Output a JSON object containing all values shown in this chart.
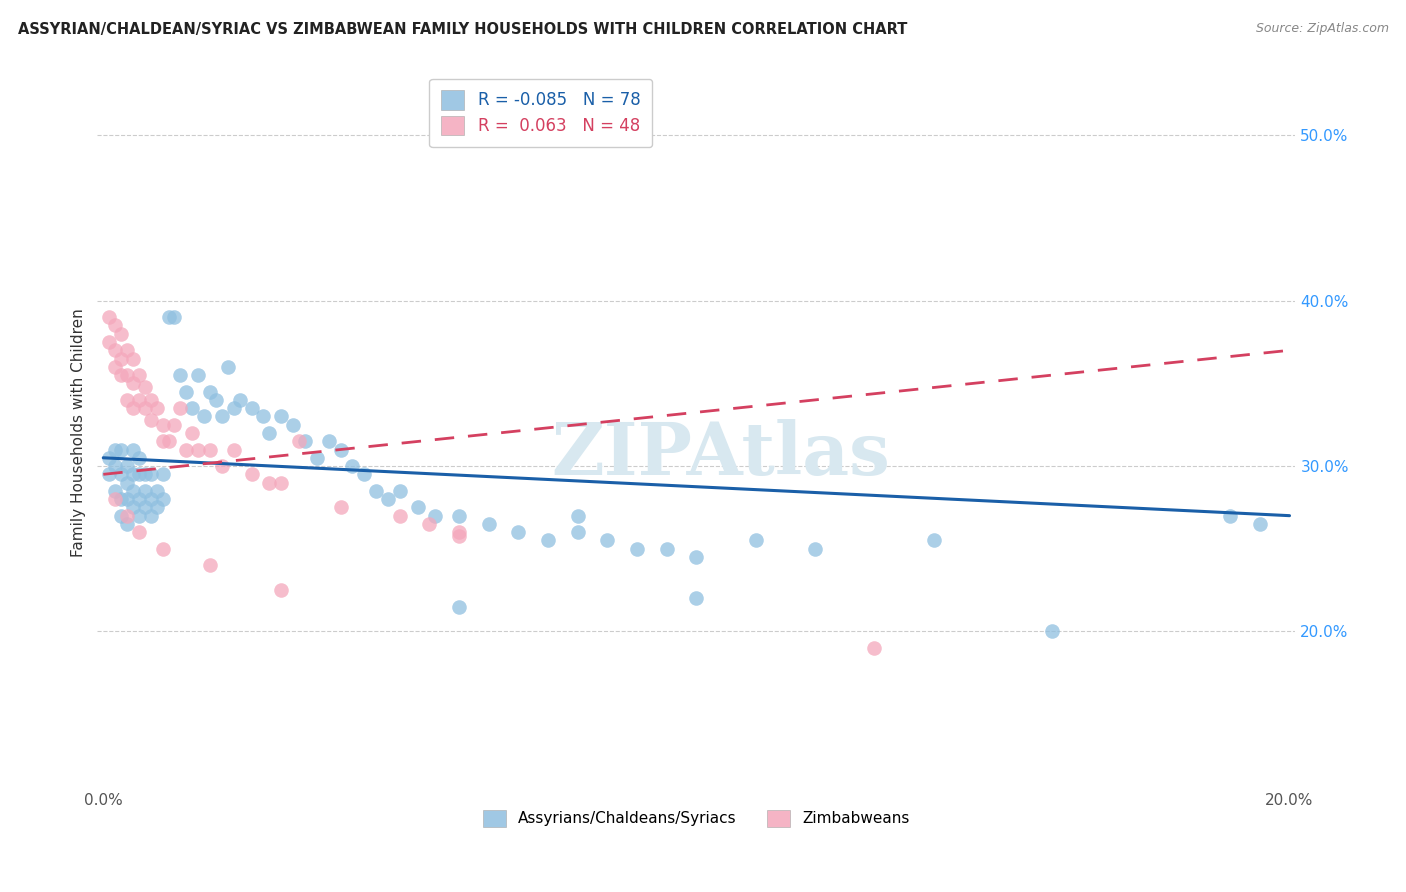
{
  "title": "ASSYRIAN/CHALDEAN/SYRIAC VS ZIMBABWEAN FAMILY HOUSEHOLDS WITH CHILDREN CORRELATION CHART",
  "source": "Source: ZipAtlas.com",
  "ylabel": "Family Households with Children",
  "xlim": [
    -0.001,
    0.201
  ],
  "ylim": [
    0.105,
    0.535
  ],
  "ytick_vals": [
    0.2,
    0.3,
    0.4,
    0.5
  ],
  "ytick_labels": [
    "20.0%",
    "30.0%",
    "40.0%",
    "50.0%"
  ],
  "xtick_vals": [
    0.0,
    0.2
  ],
  "xtick_labels": [
    "0.0%",
    "20.0%"
  ],
  "legend_r1": "R = -0.085   N = 78",
  "legend_r2": "R =  0.063   N = 48",
  "legend_bottom": [
    "Assyrians/Chaldeans/Syriacs",
    "Zimbabweans"
  ],
  "blue_scatter": "#8fbfe0",
  "pink_scatter": "#f4a7bb",
  "blue_line": "#1a5fa8",
  "pink_line": "#d44060",
  "bg": "#ffffff",
  "grid_color": "#cccccc",
  "assyrian_x": [
    0.001,
    0.001,
    0.002,
    0.002,
    0.002,
    0.003,
    0.003,
    0.003,
    0.003,
    0.004,
    0.004,
    0.004,
    0.004,
    0.005,
    0.005,
    0.005,
    0.005,
    0.006,
    0.006,
    0.006,
    0.006,
    0.007,
    0.007,
    0.007,
    0.008,
    0.008,
    0.008,
    0.009,
    0.009,
    0.01,
    0.01,
    0.011,
    0.012,
    0.013,
    0.014,
    0.015,
    0.016,
    0.017,
    0.018,
    0.019,
    0.02,
    0.021,
    0.022,
    0.023,
    0.025,
    0.027,
    0.028,
    0.03,
    0.032,
    0.034,
    0.036,
    0.038,
    0.04,
    0.042,
    0.044,
    0.046,
    0.048,
    0.05,
    0.053,
    0.056,
    0.06,
    0.065,
    0.07,
    0.075,
    0.08,
    0.085,
    0.09,
    0.095,
    0.1,
    0.11,
    0.12,
    0.14,
    0.16,
    0.06,
    0.08,
    0.1,
    0.19,
    0.195
  ],
  "assyrian_y": [
    0.305,
    0.295,
    0.31,
    0.3,
    0.285,
    0.31,
    0.295,
    0.28,
    0.27,
    0.3,
    0.29,
    0.28,
    0.265,
    0.31,
    0.295,
    0.285,
    0.275,
    0.305,
    0.295,
    0.28,
    0.27,
    0.295,
    0.285,
    0.275,
    0.295,
    0.28,
    0.27,
    0.285,
    0.275,
    0.295,
    0.28,
    0.39,
    0.39,
    0.355,
    0.345,
    0.335,
    0.355,
    0.33,
    0.345,
    0.34,
    0.33,
    0.36,
    0.335,
    0.34,
    0.335,
    0.33,
    0.32,
    0.33,
    0.325,
    0.315,
    0.305,
    0.315,
    0.31,
    0.3,
    0.295,
    0.285,
    0.28,
    0.285,
    0.275,
    0.27,
    0.27,
    0.265,
    0.26,
    0.255,
    0.26,
    0.255,
    0.25,
    0.25,
    0.245,
    0.255,
    0.25,
    0.255,
    0.2,
    0.215,
    0.27,
    0.22,
    0.27,
    0.265
  ],
  "zimbabwean_x": [
    0.001,
    0.001,
    0.002,
    0.002,
    0.002,
    0.003,
    0.003,
    0.003,
    0.004,
    0.004,
    0.004,
    0.005,
    0.005,
    0.005,
    0.006,
    0.006,
    0.007,
    0.007,
    0.008,
    0.008,
    0.009,
    0.01,
    0.01,
    0.011,
    0.012,
    0.013,
    0.014,
    0.015,
    0.016,
    0.018,
    0.02,
    0.022,
    0.025,
    0.028,
    0.03,
    0.033,
    0.04,
    0.05,
    0.055,
    0.002,
    0.004,
    0.006,
    0.01,
    0.018,
    0.03,
    0.06,
    0.06,
    0.13
  ],
  "zimbabwean_y": [
    0.39,
    0.375,
    0.385,
    0.37,
    0.36,
    0.38,
    0.365,
    0.355,
    0.37,
    0.355,
    0.34,
    0.365,
    0.35,
    0.335,
    0.355,
    0.34,
    0.348,
    0.335,
    0.34,
    0.328,
    0.335,
    0.325,
    0.315,
    0.315,
    0.325,
    0.335,
    0.31,
    0.32,
    0.31,
    0.31,
    0.3,
    0.31,
    0.295,
    0.29,
    0.29,
    0.315,
    0.275,
    0.27,
    0.265,
    0.28,
    0.27,
    0.26,
    0.25,
    0.24,
    0.225,
    0.26,
    0.258,
    0.19
  ],
  "blue_line_x0": 0.0,
  "blue_line_y0": 0.305,
  "blue_line_x1": 0.2,
  "blue_line_y1": 0.27,
  "pink_line_x0": 0.0,
  "pink_line_y0": 0.295,
  "pink_line_x1": 0.2,
  "pink_line_y1": 0.37
}
